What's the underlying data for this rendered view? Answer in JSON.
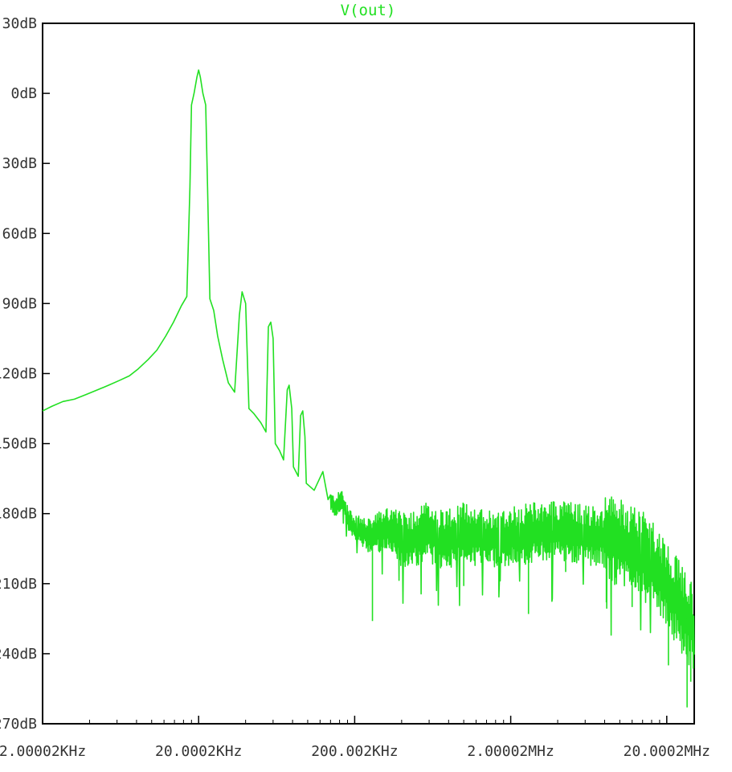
{
  "chart_data": {
    "type": "line",
    "title": "V(out)",
    "xscale": "log",
    "xlim_hz": [
      2000.02,
      30000000
    ],
    "ylim_db": [
      -270,
      30
    ],
    "y_ticks": [
      {
        "value": 30,
        "label": "30dB"
      },
      {
        "value": 0,
        "label": "0dB"
      },
      {
        "value": -30,
        "label": "-30dB"
      },
      {
        "value": -60,
        "label": "-60dB"
      },
      {
        "value": -90,
        "label": "-90dB"
      },
      {
        "value": -120,
        "label": "-120dB"
      },
      {
        "value": -150,
        "label": "-150dB"
      },
      {
        "value": -180,
        "label": "-180dB"
      },
      {
        "value": -210,
        "label": "-210dB"
      },
      {
        "value": -240,
        "label": "-240dB"
      },
      {
        "value": -270,
        "label": "-270dB"
      }
    ],
    "x_ticks": [
      {
        "value": 2000.02,
        "label": "2.00002KHz"
      },
      {
        "value": 20000.2,
        "label": "20.0002KHz"
      },
      {
        "value": 200002,
        "label": "200.002KHz"
      },
      {
        "value": 2000020,
        "label": "2.00002MHz"
      },
      {
        "value": 20000200,
        "label": "20.0002MHz"
      }
    ],
    "series": [
      {
        "name": "V(out)",
        "color": "#22e022",
        "points": [
          [
            2000,
            -136
          ],
          [
            2300,
            -134
          ],
          [
            2700,
            -132
          ],
          [
            3200,
            -131
          ],
          [
            3800,
            -129
          ],
          [
            4500,
            -127
          ],
          [
            5300,
            -125
          ],
          [
            6200,
            -123
          ],
          [
            7200,
            -121
          ],
          [
            8200,
            -118
          ],
          [
            9500,
            -114
          ],
          [
            10800,
            -110
          ],
          [
            12300,
            -104
          ],
          [
            13800,
            -98
          ],
          [
            15500,
            -91
          ],
          [
            16800,
            -87
          ],
          [
            17600,
            -40
          ],
          [
            18000,
            -5
          ],
          [
            18700,
            0
          ],
          [
            19500,
            7
          ],
          [
            20000,
            10
          ],
          [
            20500,
            7
          ],
          [
            21300,
            0
          ],
          [
            22200,
            -5
          ],
          [
            22800,
            -40
          ],
          [
            23600,
            -88
          ],
          [
            25000,
            -93
          ],
          [
            26500,
            -104
          ],
          [
            28500,
            -114
          ],
          [
            31000,
            -124
          ],
          [
            34000,
            -128
          ],
          [
            36500,
            -95
          ],
          [
            38000,
            -85
          ],
          [
            40000,
            -90
          ],
          [
            42000,
            -135
          ],
          [
            45000,
            -137
          ],
          [
            50000,
            -141
          ],
          [
            54000,
            -145
          ],
          [
            56000,
            -100
          ],
          [
            58000,
            -98
          ],
          [
            60000,
            -105
          ],
          [
            62000,
            -150
          ],
          [
            66000,
            -153
          ],
          [
            70000,
            -157
          ],
          [
            74000,
            -127
          ],
          [
            76000,
            -125
          ],
          [
            79000,
            -135
          ],
          [
            81000,
            -160
          ],
          [
            87000,
            -164
          ],
          [
            90000,
            -138
          ],
          [
            93000,
            -136
          ],
          [
            96000,
            -147
          ],
          [
            98000,
            -167
          ],
          [
            110000,
            -170
          ],
          [
            125000,
            -162
          ],
          [
            135000,
            -174
          ],
          [
            150000,
            -177
          ],
          [
            165000,
            -174
          ],
          [
            190000,
            -185
          ],
          [
            250000,
            -190
          ],
          [
            320000,
            -186
          ],
          [
            420000,
            -193
          ],
          [
            560000,
            -188
          ],
          [
            750000,
            -191
          ],
          [
            1000000,
            -188
          ],
          [
            1400000,
            -191
          ],
          [
            2000000,
            -190
          ],
          [
            2800000,
            -188
          ],
          [
            4000000,
            -187
          ],
          [
            6000000,
            -189
          ],
          [
            9000000,
            -191
          ],
          [
            13000000,
            -196
          ],
          [
            17000000,
            -203
          ],
          [
            22000000,
            -215
          ],
          [
            30000000,
            -230
          ]
        ],
        "noise_onset_hz": 140000,
        "dips": [
          [
            260000,
            -226
          ],
          [
            1000000,
            -211
          ],
          [
            2600000,
            -223
          ],
          [
            3700000,
            -207
          ],
          [
            4500000,
            -205
          ],
          [
            8200000,
            -218
          ],
          [
            12000000,
            -220
          ],
          [
            20500000,
            -245
          ],
          [
            27000000,
            -263
          ],
          [
            28500000,
            -252
          ]
        ]
      }
    ]
  }
}
